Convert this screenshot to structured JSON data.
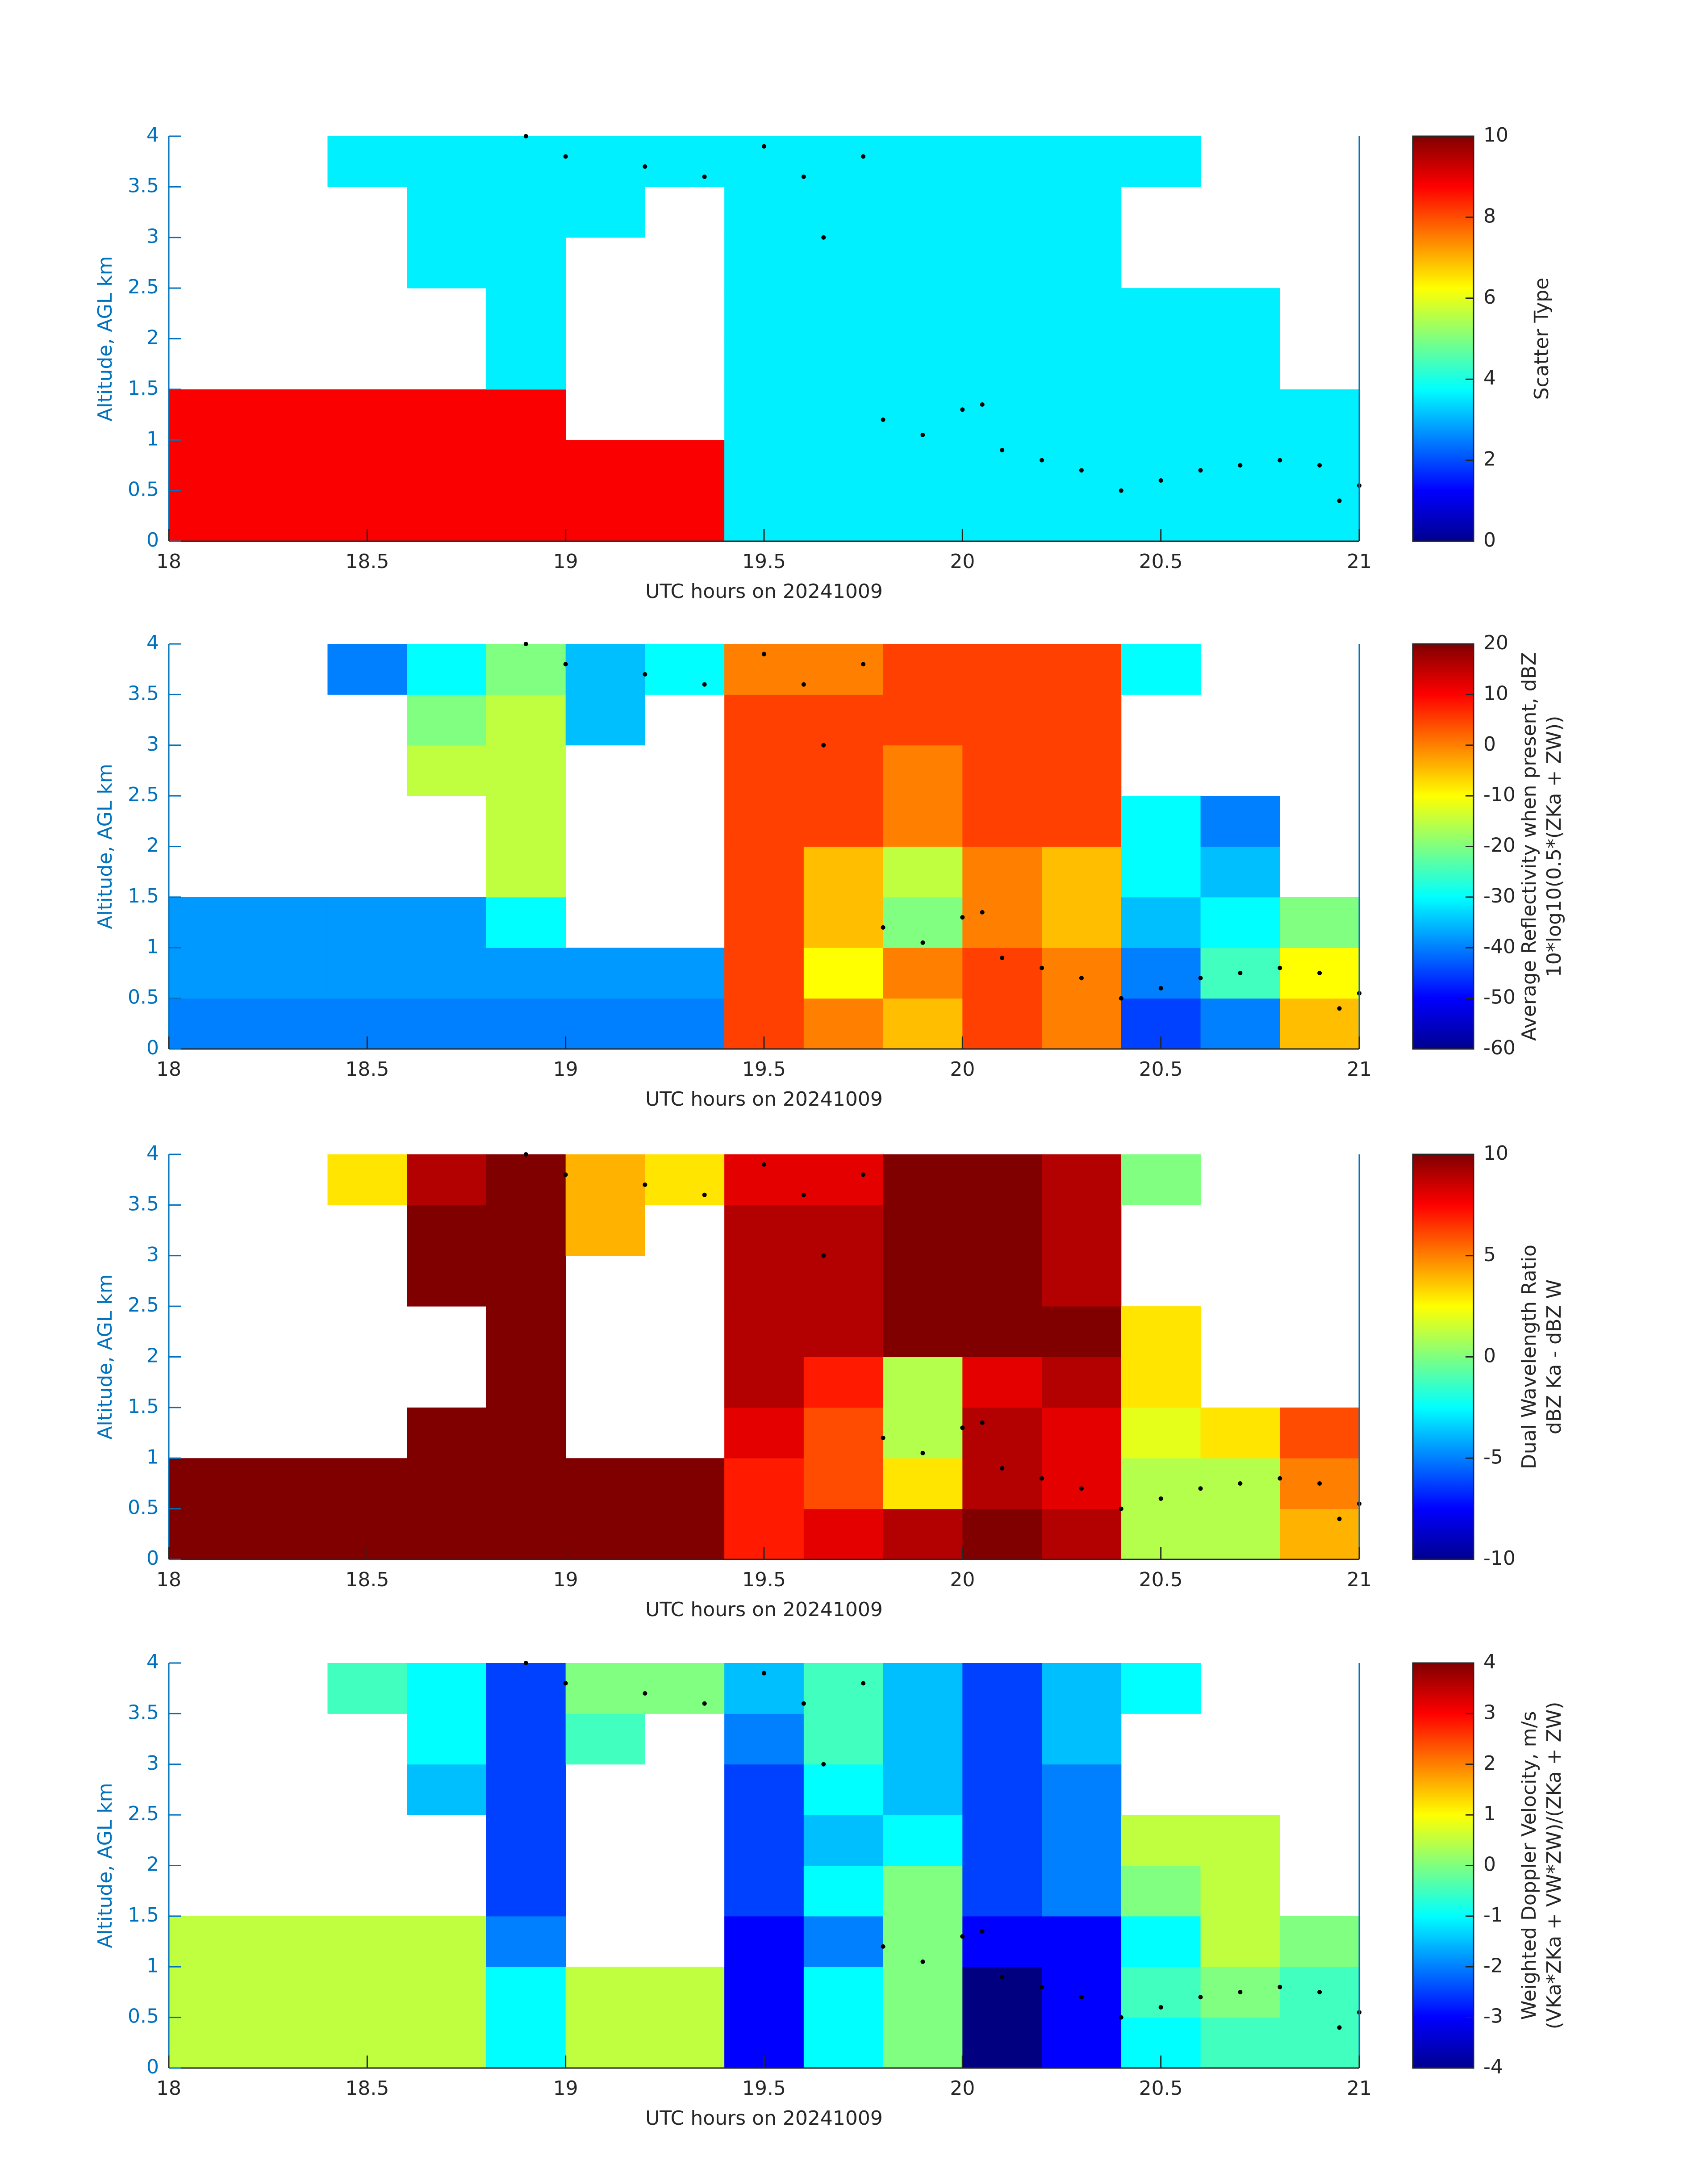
{
  "chart_data": [
    {
      "type": "heatmap",
      "colormap": "jet",
      "x_label": "UTC hours on 20241009",
      "y_label": "Altitude, AGL km",
      "colorbar_label": [
        "Scatter Type"
      ],
      "xlim": [
        18,
        21
      ],
      "xticks": [
        18,
        18.5,
        19,
        19.5,
        20,
        20.5,
        21
      ],
      "ylim": [
        0,
        4
      ],
      "yticks": [
        0,
        0.5,
        1,
        1.5,
        2,
        2.5,
        3,
        3.5,
        4
      ],
      "clim": [
        0,
        10
      ],
      "cticks": [
        0,
        2,
        4,
        6,
        8,
        10
      ],
      "x": [
        18,
        18.2,
        18.4,
        18.6,
        18.8,
        19,
        19.2,
        19.4,
        19.6,
        19.8,
        20,
        20.2,
        20.4,
        20.6,
        20.8,
        21
      ],
      "y": [
        0,
        0.5,
        1,
        1.5,
        2,
        2.5,
        3,
        3.5,
        4
      ],
      "z": [
        [
          8.8,
          8.8,
          8.8,
          8.8,
          8.8,
          8.8,
          8.8,
          3.6,
          3.6,
          3.6,
          3.6,
          3.6,
          3.6,
          3.6,
          3.6
        ],
        [
          8.8,
          8.8,
          8.8,
          8.8,
          8.8,
          8.8,
          8.8,
          3.6,
          3.6,
          3.6,
          3.6,
          3.6,
          3.6,
          3.6,
          3.6
        ],
        [
          8.8,
          8.8,
          8.8,
          8.8,
          8.8,
          null,
          null,
          3.6,
          3.6,
          3.6,
          3.6,
          3.6,
          3.6,
          3.6,
          3.6
        ],
        [
          null,
          null,
          null,
          null,
          3.6,
          null,
          null,
          3.6,
          3.6,
          3.6,
          3.6,
          3.6,
          3.6,
          3.6,
          null
        ],
        [
          null,
          null,
          null,
          null,
          3.6,
          null,
          null,
          3.6,
          3.6,
          3.6,
          3.6,
          3.6,
          3.6,
          3.6,
          null
        ],
        [
          null,
          null,
          null,
          3.6,
          3.6,
          null,
          null,
          3.6,
          3.6,
          3.6,
          3.6,
          3.6,
          null,
          null,
          null
        ],
        [
          null,
          null,
          null,
          3.6,
          3.6,
          3.6,
          null,
          3.6,
          3.6,
          3.6,
          3.6,
          3.6,
          null,
          null,
          null
        ],
        [
          null,
          null,
          3.6,
          3.6,
          3.6,
          3.6,
          3.6,
          3.6,
          3.6,
          3.6,
          3.6,
          3.6,
          3.6,
          null,
          null
        ]
      ],
      "points": {
        "x": [
          18.9,
          19.0,
          19.2,
          19.35,
          19.5,
          19.6,
          19.65,
          19.75,
          19.8,
          19.9,
          20.0,
          20.05,
          20.1,
          20.2,
          20.3,
          20.4,
          20.5,
          20.6,
          20.7,
          20.8,
          20.9,
          20.95,
          21.0
        ],
        "y": [
          4.0,
          3.8,
          3.7,
          3.6,
          3.9,
          3.6,
          3.0,
          3.8,
          1.2,
          1.05,
          1.3,
          1.35,
          0.9,
          0.8,
          0.7,
          0.5,
          0.6,
          0.7,
          0.75,
          0.8,
          0.75,
          0.4,
          0.55
        ]
      }
    },
    {
      "type": "heatmap",
      "colormap": "jet",
      "x_label": "UTC hours on 20241009",
      "y_label": "Altitude, AGL km",
      "colorbar_label": [
        "Average Reflectivity when present, dBZ",
        "10*log10(0.5*(ZKa + ZW))"
      ],
      "xlim": [
        18,
        21
      ],
      "xticks": [
        18,
        18.5,
        19,
        19.5,
        20,
        20.5,
        21
      ],
      "ylim": [
        0,
        4
      ],
      "yticks": [
        0,
        0.5,
        1,
        1.5,
        2,
        2.5,
        3,
        3.5,
        4
      ],
      "clim": [
        -60,
        20
      ],
      "cticks": [
        -60,
        -50,
        -40,
        -30,
        -20,
        -10,
        0,
        10,
        20
      ],
      "x": [
        18,
        18.2,
        18.4,
        18.6,
        18.8,
        19,
        19.2,
        19.4,
        19.6,
        19.8,
        20,
        20.2,
        20.4,
        20.6,
        20.8,
        21
      ],
      "y": [
        0,
        0.5,
        1,
        1.5,
        2,
        2.5,
        3,
        3.5,
        4
      ],
      "z": [
        [
          -40,
          -40,
          -40,
          -40,
          -40,
          -40,
          -40,
          5,
          0,
          -5,
          5,
          0,
          -45,
          -40,
          -5
        ],
        [
          -38,
          -38,
          -38,
          -38,
          -38,
          -38,
          -38,
          5,
          -10,
          0,
          5,
          0,
          -40,
          -25,
          -10
        ],
        [
          -38,
          -38,
          -38,
          -38,
          -30,
          null,
          null,
          5,
          -5,
          -20,
          0,
          -5,
          -35,
          -30,
          -20
        ],
        [
          null,
          null,
          null,
          null,
          -15,
          null,
          null,
          5,
          -5,
          -15,
          0,
          -5,
          -30,
          -35,
          null
        ],
        [
          null,
          null,
          null,
          null,
          -15,
          null,
          null,
          5,
          5,
          0,
          5,
          5,
          -30,
          -40,
          null
        ],
        [
          null,
          null,
          null,
          -15,
          -15,
          null,
          null,
          5,
          5,
          0,
          5,
          5,
          null,
          null,
          null
        ],
        [
          null,
          null,
          null,
          -20,
          -15,
          -35,
          null,
          5,
          5,
          5,
          5,
          5,
          null,
          null,
          null
        ],
        [
          null,
          null,
          -40,
          -30,
          -20,
          -35,
          -30,
          0,
          0,
          5,
          5,
          5,
          -30,
          null,
          null
        ]
      ],
      "points": {
        "x": [
          18.9,
          19.0,
          19.2,
          19.35,
          19.5,
          19.6,
          19.65,
          19.75,
          19.8,
          19.9,
          20.0,
          20.05,
          20.1,
          20.2,
          20.3,
          20.4,
          20.5,
          20.6,
          20.7,
          20.8,
          20.9,
          20.95,
          21.0
        ],
        "y": [
          4.0,
          3.8,
          3.7,
          3.6,
          3.9,
          3.6,
          3.0,
          3.8,
          1.2,
          1.05,
          1.3,
          1.35,
          0.9,
          0.8,
          0.7,
          0.5,
          0.6,
          0.7,
          0.75,
          0.8,
          0.75,
          0.4,
          0.55
        ]
      }
    },
    {
      "type": "heatmap",
      "colormap": "jet",
      "x_label": "UTC hours on 20241009",
      "y_label": "Altitude, AGL km",
      "colorbar_label": [
        "Dual Wavelength Ratio",
        "dBZ Ka - dBZ W"
      ],
      "xlim": [
        18,
        21
      ],
      "xticks": [
        18,
        18.5,
        19,
        19.5,
        20,
        20.5,
        21
      ],
      "ylim": [
        0,
        4
      ],
      "yticks": [
        0,
        0.5,
        1,
        1.5,
        2,
        2.5,
        3,
        3.5,
        4
      ],
      "clim": [
        -10,
        10
      ],
      "cticks": [
        -10,
        -5,
        0,
        5,
        10
      ],
      "x": [
        18,
        18.2,
        18.4,
        18.6,
        18.8,
        19,
        19.2,
        19.4,
        19.6,
        19.8,
        20,
        20.2,
        20.4,
        20.6,
        20.8,
        21
      ],
      "y": [
        0,
        0.5,
        1,
        1.5,
        2,
        2.5,
        3,
        3.5,
        4
      ],
      "z": [
        [
          10,
          10,
          10,
          10,
          10,
          10,
          10,
          7,
          8,
          9,
          10,
          9,
          1,
          1,
          4
        ],
        [
          10,
          10,
          10,
          10,
          10,
          10,
          10,
          7,
          6,
          3,
          9,
          8,
          1,
          1,
          5
        ],
        [
          null,
          null,
          null,
          10,
          10,
          null,
          null,
          8,
          6,
          1,
          9,
          8,
          2,
          3,
          6
        ],
        [
          null,
          null,
          null,
          null,
          10,
          null,
          null,
          9,
          7,
          1,
          8,
          9,
          3,
          null,
          null
        ],
        [
          null,
          null,
          null,
          null,
          10,
          null,
          null,
          9,
          9,
          10,
          10,
          10,
          3,
          null,
          null
        ],
        [
          null,
          null,
          null,
          10,
          10,
          null,
          null,
          9,
          9,
          10,
          10,
          9,
          null,
          null,
          null
        ],
        [
          null,
          null,
          null,
          10,
          10,
          4,
          null,
          9,
          9,
          10,
          10,
          9,
          null,
          null,
          null
        ],
        [
          null,
          null,
          3,
          9,
          10,
          4,
          3,
          8,
          8,
          10,
          10,
          9,
          0,
          null,
          null
        ]
      ],
      "points": {
        "x": [
          18.9,
          19.0,
          19.2,
          19.35,
          19.5,
          19.6,
          19.65,
          19.75,
          19.8,
          19.9,
          20.0,
          20.05,
          20.1,
          20.2,
          20.3,
          20.4,
          20.5,
          20.6,
          20.7,
          20.8,
          20.9,
          20.95,
          21.0
        ],
        "y": [
          4.0,
          3.8,
          3.7,
          3.6,
          3.9,
          3.6,
          3.0,
          3.8,
          1.2,
          1.05,
          1.3,
          1.35,
          0.9,
          0.8,
          0.7,
          0.5,
          0.6,
          0.7,
          0.75,
          0.8,
          0.75,
          0.4,
          0.55
        ]
      }
    },
    {
      "type": "heatmap",
      "colormap": "jet",
      "x_label": "UTC hours on 20241009",
      "y_label": "Altitude, AGL km",
      "colorbar_label": [
        "Weighted Doppler Velocity, m/s",
        "(VKa*ZKa + VW*ZW)/(ZKa + ZW)"
      ],
      "xlim": [
        18,
        21
      ],
      "xticks": [
        18,
        18.5,
        19,
        19.5,
        20,
        20.5,
        21
      ],
      "ylim": [
        0,
        4
      ],
      "yticks": [
        0,
        0.5,
        1,
        1.5,
        2,
        2.5,
        3,
        3.5,
        4
      ],
      "clim": [
        -4,
        4
      ],
      "cticks": [
        -4,
        -3,
        -2,
        -1,
        0,
        1,
        2,
        3,
        4
      ],
      "x": [
        18,
        18.2,
        18.4,
        18.6,
        18.8,
        19,
        19.2,
        19.4,
        19.6,
        19.8,
        20,
        20.2,
        20.4,
        20.6,
        20.8,
        21
      ],
      "y": [
        0,
        0.5,
        1,
        1.5,
        2,
        2.5,
        3,
        3.5,
        4
      ],
      "z": [
        [
          0.5,
          0.5,
          0.5,
          0.5,
          -1,
          0.5,
          0.5,
          -3,
          -1,
          0,
          -4,
          -3,
          -1,
          -0.5,
          -0.5
        ],
        [
          0.5,
          0.5,
          0.5,
          0.5,
          -1,
          0.5,
          0.5,
          -3,
          -1,
          0,
          -4,
          -3,
          -0.5,
          0,
          -0.5
        ],
        [
          0.5,
          0.5,
          0.5,
          0.5,
          -2,
          null,
          null,
          -3,
          -2,
          0,
          -3,
          -3,
          -1,
          0.5,
          0
        ],
        [
          null,
          null,
          null,
          null,
          -2.5,
          null,
          null,
          -2.5,
          -1,
          0,
          -2.5,
          -2,
          0,
          0.5,
          null
        ],
        [
          null,
          null,
          null,
          null,
          -2.5,
          null,
          null,
          -2.5,
          -1.5,
          -1,
          -2.5,
          -2,
          0.5,
          0.5,
          null
        ],
        [
          null,
          null,
          null,
          -1.5,
          -2.5,
          null,
          null,
          -2.5,
          -1,
          -1.5,
          -2.5,
          -2,
          null,
          null,
          null
        ],
        [
          null,
          null,
          null,
          -1,
          -2.5,
          -0.5,
          null,
          -2,
          -0.5,
          -1.5,
          -2.5,
          -1.5,
          null,
          null,
          null
        ],
        [
          null,
          null,
          -0.5,
          -1,
          -2.5,
          0,
          0,
          -1.5,
          -0.5,
          -1.5,
          -2.5,
          -1.5,
          -1,
          null,
          null
        ]
      ],
      "points": {
        "x": [
          18.9,
          19.0,
          19.2,
          19.35,
          19.5,
          19.6,
          19.65,
          19.75,
          19.8,
          19.9,
          20.0,
          20.05,
          20.1,
          20.2,
          20.3,
          20.4,
          20.5,
          20.6,
          20.7,
          20.8,
          20.9,
          20.95,
          21.0
        ],
        "y": [
          4.0,
          3.8,
          3.7,
          3.6,
          3.9,
          3.6,
          3.0,
          3.8,
          1.2,
          1.05,
          1.3,
          1.35,
          0.9,
          0.8,
          0.7,
          0.5,
          0.6,
          0.7,
          0.75,
          0.8,
          0.75,
          0.4,
          0.55
        ]
      }
    }
  ]
}
